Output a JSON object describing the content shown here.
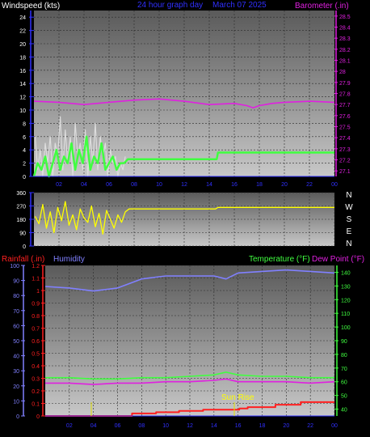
{
  "header": {
    "left_title": "Windspeed (kts)",
    "center_title": "24 hour graph day",
    "date": "March 07 2025",
    "right_title": "Barometer (.in)"
  },
  "colors": {
    "background": "#000000",
    "white_text": "#ffffff",
    "blue_text": "#3030ff",
    "magenta": "#e020e0",
    "yellow": "#ffff00",
    "green": "#40ff40",
    "red": "#ff2020",
    "humidity_blue": "#8080ff"
  },
  "chart_data": [
    {
      "type": "line",
      "panel": "wind_baro",
      "x_ticks": [
        "02",
        "04",
        "06",
        "08",
        "10",
        "12",
        "14",
        "16",
        "18",
        "20",
        "22",
        "00"
      ],
      "left_axis": {
        "label": "Windspeed (kts)",
        "ticks": [
          "0",
          "2",
          "4",
          "6",
          "8",
          "10",
          "12",
          "14",
          "16",
          "18",
          "20",
          "22",
          "24"
        ],
        "ylim": [
          0,
          25
        ]
      },
      "right_axis": {
        "label": "Barometer (.in)",
        "ticks": [
          "27.1",
          "27.2",
          "27.3",
          "27.4",
          "27.5",
          "27.6",
          "27.7",
          "27.8",
          "27.9",
          "28",
          "28.1",
          "28.2",
          "28.3",
          "28.4",
          "28.5"
        ],
        "ylim": [
          27.05,
          28.55
        ]
      },
      "series": [
        {
          "key": "gust",
          "color": "#dddddd",
          "axis": "left",
          "x": [
            0.1,
            0.3,
            0.5,
            0.7,
            0.9,
            1.1,
            1.3,
            1.5,
            1.7,
            1.9,
            2.1,
            2.3,
            2.5,
            2.7,
            2.9,
            3.1,
            3.3,
            3.5,
            3.7,
            3.9,
            4.1,
            4.3,
            4.5,
            4.7,
            4.9,
            5.1,
            5.3,
            5.5,
            5.7,
            5.9,
            6.1,
            6.3,
            6.5,
            6.7,
            6.9,
            7.1,
            7.3
          ],
          "values": [
            6,
            1,
            4,
            0,
            5,
            2,
            6,
            0,
            5,
            3,
            9,
            1,
            7,
            2,
            6,
            0,
            8,
            3,
            5,
            1,
            7,
            0,
            6,
            2,
            8,
            1,
            6,
            3,
            5,
            0,
            4,
            2,
            3,
            0,
            2,
            1,
            3
          ]
        },
        {
          "key": "average",
          "color": "#40ff40",
          "axis": "left",
          "x": [
            0,
            0.3,
            0.6,
            0.9,
            1.2,
            1.5,
            1.8,
            2.1,
            2.4,
            2.7,
            3.0,
            3.3,
            3.6,
            3.9,
            4.2,
            4.5,
            4.8,
            5.1,
            5.4,
            5.7,
            6.0,
            6.3,
            6.6,
            6.9,
            7.2,
            7.5,
            14.6,
            14.7,
            24
          ],
          "values": [
            0,
            2,
            1,
            3,
            0,
            2,
            4,
            1,
            3,
            2,
            5,
            1,
            4,
            2,
            6,
            1,
            3,
            2,
            5,
            1,
            2,
            3,
            1,
            2,
            2,
            2.6,
            2.6,
            3.6,
            3.6
          ]
        },
        {
          "key": "barometer",
          "color": "#e020e0",
          "axis": "right",
          "x": [
            0,
            2,
            4,
            6,
            8,
            10,
            12,
            14,
            16,
            17,
            17.5,
            18,
            18.5,
            19,
            20,
            22,
            24
          ],
          "values": [
            27.73,
            27.72,
            27.7,
            27.72,
            27.74,
            27.75,
            27.73,
            27.7,
            27.71,
            27.69,
            27.67,
            27.69,
            27.7,
            27.71,
            27.72,
            27.73,
            27.72
          ]
        }
      ]
    },
    {
      "type": "line",
      "panel": "wind_direction",
      "left_ticks": [
        "0",
        "90",
        "180",
        "270",
        "360"
      ],
      "right_labels": [
        "N",
        "W",
        "S",
        "E",
        "N"
      ],
      "ylim": [
        0,
        360
      ],
      "series": [
        {
          "key": "direction",
          "color": "#ffff00",
          "x": [
            0.1,
            0.4,
            0.7,
            1.0,
            1.3,
            1.6,
            1.9,
            2.2,
            2.5,
            2.8,
            3.1,
            3.4,
            3.7,
            4.0,
            4.3,
            4.6,
            4.9,
            5.2,
            5.5,
            5.8,
            6.1,
            6.4,
            6.7,
            7.0,
            7.3,
            7.6,
            14.5,
            14.7,
            24
          ],
          "values": [
            200,
            150,
            280,
            120,
            230,
            90,
            260,
            170,
            300,
            140,
            210,
            110,
            250,
            190,
            160,
            270,
            130,
            220,
            80,
            240,
            180,
            120,
            210,
            160,
            230,
            250,
            250,
            260,
            260
          ]
        }
      ]
    },
    {
      "type": "line",
      "panel": "rain_humidity_temp",
      "x_ticks": [
        "02",
        "04",
        "06",
        "08",
        "10",
        "12",
        "14",
        "16",
        "18",
        "20",
        "22",
        "00"
      ],
      "left_axis_rain": {
        "label": "Rainfall (.in)",
        "ticks": [
          "0",
          "0.1",
          "0.2",
          "0.3",
          "0.4",
          "0.5",
          "0.6",
          "0.7",
          "0.8",
          "0.9",
          "1",
          "1.1",
          "1.2"
        ],
        "ylim": [
          0,
          1.2
        ]
      },
      "left_axis_humidity": {
        "label": "Humidity",
        "ticks": [
          "0",
          "10",
          "20",
          "30",
          "40",
          "50",
          "60",
          "70",
          "80",
          "90",
          "100"
        ],
        "ylim": [
          0,
          100
        ]
      },
      "right_axis_temp": {
        "label_temp": "Temperature (°F)",
        "label_dew": "Dew Point (°F)",
        "ticks": [
          "40",
          "50",
          "60",
          "70",
          "80",
          "90",
          "100",
          "110",
          "120",
          "130",
          "140"
        ],
        "ylim": [
          35,
          145
        ]
      },
      "annotation": "Sun Rise",
      "series": [
        {
          "key": "humidity",
          "color": "#8080ff",
          "axis": "humidity",
          "x": [
            0,
            2,
            4,
            6,
            8,
            10,
            12,
            14,
            15,
            16,
            18,
            20,
            22,
            24
          ],
          "values": [
            86,
            85,
            83,
            85,
            91,
            93,
            93,
            93,
            91,
            95,
            96,
            97,
            96,
            95
          ]
        },
        {
          "key": "temperature",
          "color": "#40ff40",
          "axis": "temp",
          "x": [
            0,
            2,
            4,
            6,
            8,
            10,
            12,
            14,
            15,
            16,
            18,
            20,
            22,
            24
          ],
          "values": [
            63,
            63,
            62,
            62,
            63,
            63,
            64,
            65,
            67,
            65,
            64,
            64,
            63,
            63
          ]
        },
        {
          "key": "dewpoint",
          "color": "#e020e0",
          "axis": "temp",
          "x": [
            0,
            2,
            4,
            6,
            8,
            10,
            12,
            14,
            15,
            16,
            18,
            20,
            22,
            24
          ],
          "values": [
            59,
            59,
            58,
            59,
            59,
            60,
            60,
            61,
            62,
            60,
            60,
            60,
            59,
            60
          ]
        },
        {
          "key": "rainfall",
          "color": "#ff2020",
          "axis": "rain",
          "step": true,
          "x": [
            0,
            7.2,
            9.2,
            11.1,
            13.1,
            16.1,
            16.8,
            19.1,
            21.2,
            24
          ],
          "values": [
            0,
            0.02,
            0.03,
            0.04,
            0.05,
            0.06,
            0.07,
            0.09,
            0.11,
            0.11
          ]
        }
      ]
    }
  ]
}
